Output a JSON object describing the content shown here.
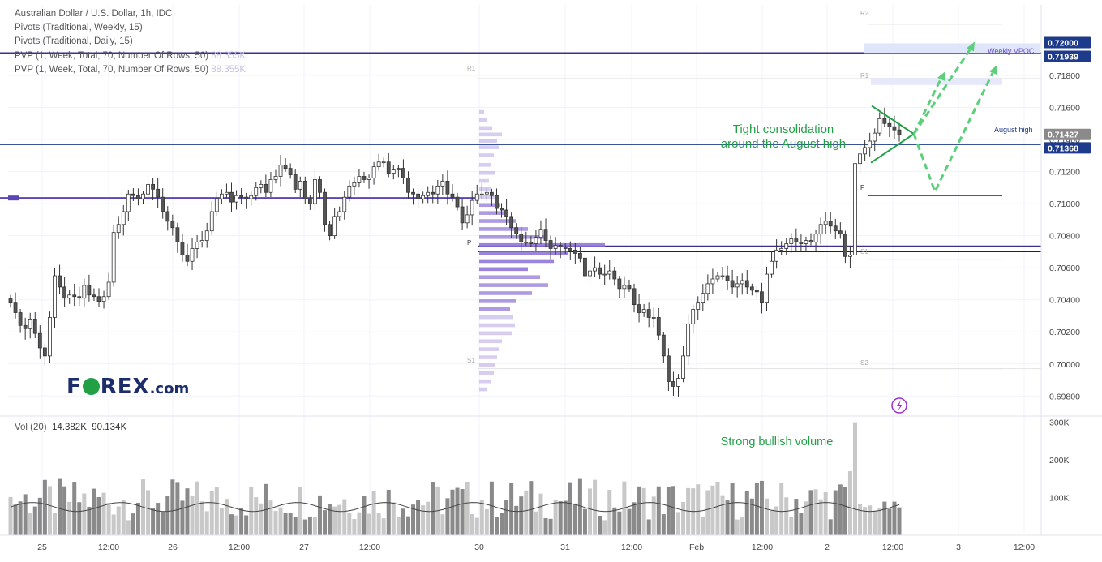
{
  "legend": {
    "symbol": "Australian Dollar / U.S. Dollar, 1h, IDC",
    "ind1": "Pivots (Traditional, Weekly, 15)",
    "ind2": "Pivots (Traditional, Daily, 15)",
    "ind3": "PVP (1, Week, Total, 70, Number Of Rows, 50)",
    "ind3_val": "88.355K",
    "ind4": "PVP (1, Week, Total, 70, Number Of Rows, 50)",
    "ind4_val": "88.355K",
    "vol": "Vol (20)",
    "vol_val1": "14.382K",
    "vol_val2": "90.134K"
  },
  "logo": {
    "left": "F",
    "right": "REX",
    "suffix": ".com"
  },
  "annotations": {
    "consolidation_line1": "Tight consolidation",
    "consolidation_line2": "around the August high",
    "volume": "Strong bullish volume",
    "weekly_vpoc": "Weekly VPOC",
    "august_high": "August high"
  },
  "pivot_labels": {
    "r2": "R2",
    "r1a": "R1",
    "r1b": "R1",
    "p1": "P",
    "p2": "P",
    "s1a": "S1",
    "s1b": "S1",
    "s2": "S2"
  },
  "price_tags": [
    {
      "text": "0.72000",
      "bg": "#1e3a8a"
    },
    {
      "text": "0.71939",
      "bg": "#1e3a8a"
    },
    {
      "text": "0.71427",
      "bg": "#8a8a8a"
    },
    {
      "text": "0.71368",
      "bg": "#1e3a8a"
    }
  ],
  "colors": {
    "bull": "#ffffff",
    "bear": "#555555",
    "pivot_line": "#3b2f8f",
    "profile": "#8a6fd6",
    "green": "#22a046",
    "grid": "#f0f3fa"
  },
  "chart_data": {
    "type": "candlestick",
    "instrument": "Australian Dollar / U.S. Dollar",
    "timeframe": "1h",
    "y_axis": {
      "ticks": [
        "0.69800",
        "0.70000",
        "0.70200",
        "0.70400",
        "0.70600",
        "0.70800",
        "0.71000",
        "0.71200",
        "0.71400",
        "0.71600",
        "0.71800"
      ],
      "range": [
        0.6968,
        0.7224
      ]
    },
    "x_axis": {
      "ticks": [
        "25",
        "12:00",
        "26",
        "12:00",
        "27",
        "12:00",
        "30",
        "31",
        "12:00",
        "Feb",
        "12:00",
        "2",
        "12:00",
        "3",
        "12:00"
      ]
    },
    "volume_axis": {
      "ticks": [
        "300K",
        "200K",
        "100K"
      ],
      "range": [
        0,
        310000
      ]
    },
    "closes": [
      0.7038,
      0.7032,
      0.7024,
      0.7022,
      0.7028,
      0.7019,
      0.701,
      0.7005,
      0.7029,
      0.7055,
      0.7048,
      0.7041,
      0.7043,
      0.7042,
      0.7041,
      0.7049,
      0.7043,
      0.7042,
      0.7039,
      0.7042,
      0.7051,
      0.7082,
      0.7087,
      0.7095,
      0.7106,
      0.7105,
      0.7103,
      0.7106,
      0.7112,
      0.7109,
      0.7104,
      0.7095,
      0.7089,
      0.7085,
      0.7076,
      0.7068,
      0.7064,
      0.7072,
      0.7076,
      0.7077,
      0.7083,
      0.7095,
      0.7103,
      0.7106,
      0.7107,
      0.7101,
      0.7105,
      0.7104,
      0.7103,
      0.7105,
      0.711,
      0.7112,
      0.7107,
      0.7115,
      0.7117,
      0.7124,
      0.7122,
      0.7118,
      0.7109,
      0.7114,
      0.7103,
      0.71,
      0.7115,
      0.7107,
      0.7087,
      0.708,
      0.7092,
      0.7095,
      0.7104,
      0.7111,
      0.7113,
      0.7117,
      0.7115,
      0.7116,
      0.7123,
      0.7126,
      0.7126,
      0.7119,
      0.7121,
      0.7122,
      0.7116,
      0.7107,
      0.7106,
      0.7103,
      0.7105,
      0.7107,
      0.7106,
      0.7111,
      0.7114,
      0.7106,
      0.7104,
      0.7098,
      0.7088,
      0.7093,
      0.7102,
      0.7106,
      0.7106,
      0.7107,
      0.7105,
      0.7097,
      0.7096,
      0.7092,
      0.7085,
      0.7081,
      0.7076,
      0.7076,
      0.7075,
      0.7079,
      0.7084,
      0.7077,
      0.7072,
      0.7074,
      0.7073,
      0.7072,
      0.7071,
      0.7069,
      0.7066,
      0.7055,
      0.7058,
      0.706,
      0.7056,
      0.7056,
      0.7058,
      0.7053,
      0.7047,
      0.7049,
      0.7047,
      0.7037,
      0.7032,
      0.7034,
      0.7029,
      0.7029,
      0.7018,
      0.7005,
      0.6989,
      0.6986,
      0.6991,
      0.7005,
      0.7025,
      0.7034,
      0.7038,
      0.7044,
      0.705,
      0.7053,
      0.7055,
      0.7055,
      0.7052,
      0.7048,
      0.705,
      0.7052,
      0.7048,
      0.7046,
      0.7045,
      0.7038,
      0.7056,
      0.7064,
      0.7071,
      0.7072,
      0.7075,
      0.7078,
      0.7076,
      0.7075,
      0.7077,
      0.7076,
      0.7081,
      0.7087,
      0.7089,
      0.7086,
      0.7083,
      0.7081,
      0.7067,
      0.7068,
      0.7125,
      0.7131,
      0.7135,
      0.7139,
      0.7144,
      0.7153,
      0.715,
      0.7148,
      0.7146,
      0.7143
    ]
  }
}
